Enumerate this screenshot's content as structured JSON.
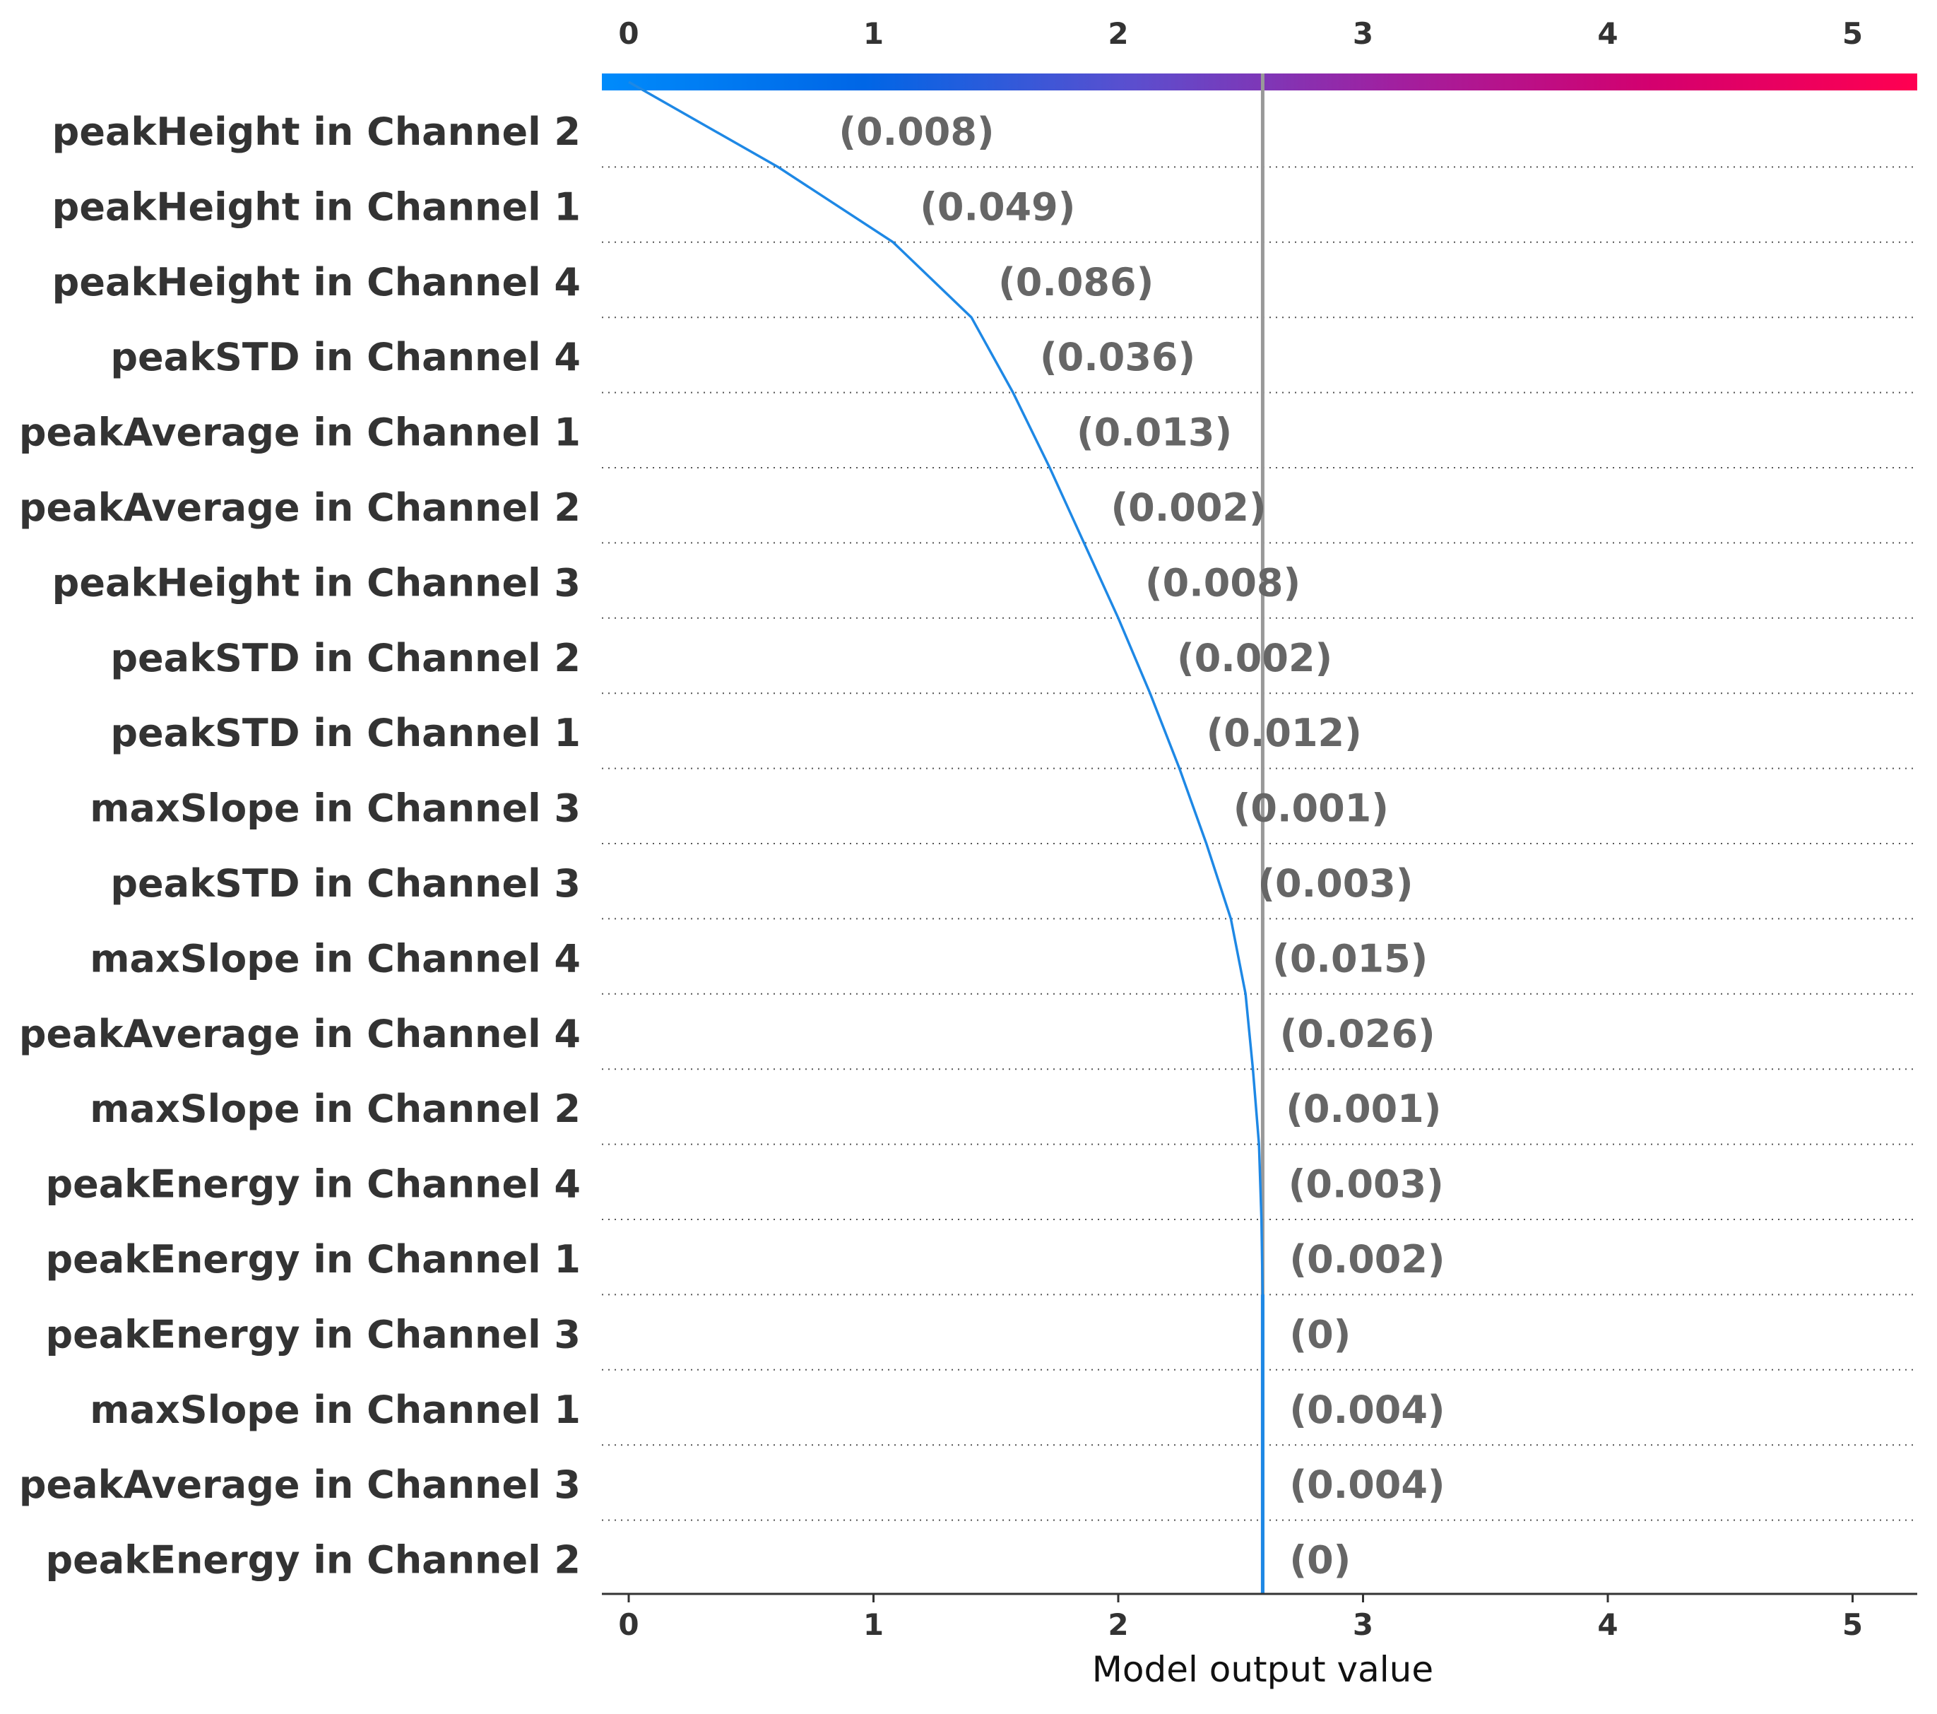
{
  "chart_data": {
    "type": "line",
    "chart_kind": "decision-plot",
    "xlabel": "Model output value",
    "xlim": [
      -0.11,
      5.28
    ],
    "x_ticks": [
      0,
      1,
      2,
      3,
      4,
      5
    ],
    "expected_value": 0,
    "model_output": 2.59,
    "grid": "dotted horizontal",
    "colorbar_colors": [
      "#008bfb",
      "#0066e6",
      "#5a4fcf",
      "#a020a0",
      "#d4006e",
      "#ff0051"
    ],
    "line_color": "#1e88e5",
    "output_line_color": "#999999",
    "features": [
      {
        "name": "peakHeight in Channel 2",
        "value": "(0.008)",
        "cumulative": 0.61
      },
      {
        "name": "peakHeight in Channel 1",
        "value": "(0.049)",
        "cumulative": 1.08
      },
      {
        "name": "peakHeight in Channel 4",
        "value": "(0.086)",
        "cumulative": 1.4
      },
      {
        "name": "peakSTD in Channel 4",
        "value": "(0.036)",
        "cumulative": 1.57
      },
      {
        "name": "peakAverage in Channel 1",
        "value": "(0.013)",
        "cumulative": 1.72
      },
      {
        "name": "peakAverage in Channel 2",
        "value": "(0.002)",
        "cumulative": 1.86
      },
      {
        "name": "peakHeight in Channel 3",
        "value": "(0.008)",
        "cumulative": 2.0
      },
      {
        "name": "peakSTD in Channel 2",
        "value": "(0.002)",
        "cumulative": 2.13
      },
      {
        "name": "peakSTD in Channel 1",
        "value": "(0.012)",
        "cumulative": 2.25
      },
      {
        "name": "maxSlope in Channel 3",
        "value": "(0.001)",
        "cumulative": 2.36
      },
      {
        "name": "peakSTD in Channel 3",
        "value": "(0.003)",
        "cumulative": 2.46
      },
      {
        "name": "maxSlope in Channel 4",
        "value": "(0.015)",
        "cumulative": 2.52
      },
      {
        "name": "peakAverage in Channel 4",
        "value": "(0.026)",
        "cumulative": 2.55
      },
      {
        "name": "maxSlope in Channel 2",
        "value": "(0.001)",
        "cumulative": 2.575
      },
      {
        "name": "peakEnergy in Channel 4",
        "value": "(0.003)",
        "cumulative": 2.585
      },
      {
        "name": "peakEnergy in Channel 1",
        "value": "(0.002)",
        "cumulative": 2.59
      },
      {
        "name": "peakEnergy in Channel 3",
        "value": "(0)",
        "cumulative": 2.59
      },
      {
        "name": "maxSlope in Channel 1",
        "value": "(0.004)",
        "cumulative": 2.59
      },
      {
        "name": "peakAverage in Channel 3",
        "value": "(0.004)",
        "cumulative": 2.59
      },
      {
        "name": "peakEnergy in Channel 2",
        "value": "(0)",
        "cumulative": 2.59
      }
    ]
  }
}
